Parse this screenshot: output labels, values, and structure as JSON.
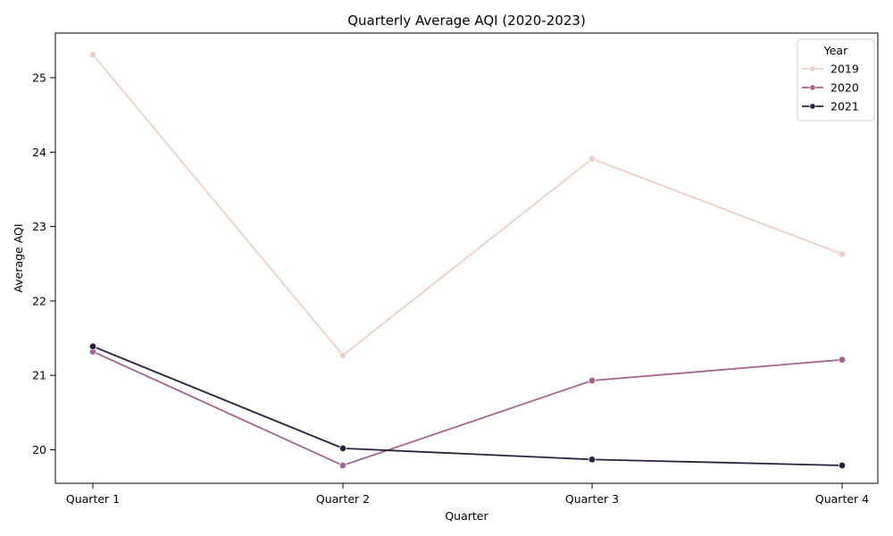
{
  "chart_data": {
    "type": "line",
    "title": "Quarterly Average AQI (2020-2023)",
    "xlabel": "Quarter",
    "ylabel": "Average AQI",
    "categories": [
      "Quarter 1",
      "Quarter 2",
      "Quarter 3",
      "Quarter 4"
    ],
    "ylim": [
      19.55,
      25.6
    ],
    "yticks": [
      20,
      21,
      22,
      23,
      24,
      25
    ],
    "grid": false,
    "legend": {
      "title": "Year",
      "placement": "top-right"
    },
    "series": [
      {
        "name": "2019",
        "color": "#ebd0c8",
        "values": [
          25.31,
          21.27,
          23.91,
          22.63
        ]
      },
      {
        "name": "2020",
        "color": "#a3648f",
        "values": [
          21.32,
          19.79,
          20.93,
          21.21
        ]
      },
      {
        "name": "2021",
        "color": "#2a1f3f",
        "values": [
          21.39,
          20.02,
          19.87,
          19.79
        ]
      }
    ]
  }
}
